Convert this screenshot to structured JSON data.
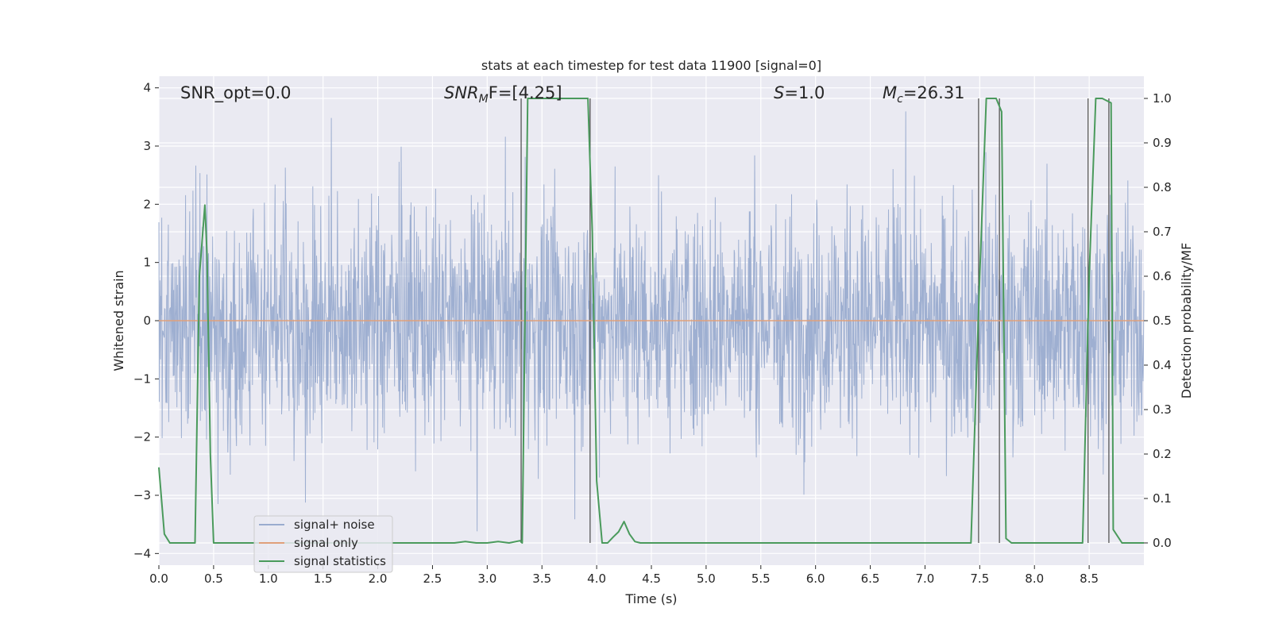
{
  "chart_data": {
    "type": "line",
    "title": "stats at each timestep for test data 11900 [signal=0]",
    "xlabel": "Time (s)",
    "ylabel": "Whitened strain",
    "y2label": "Detection probability/MF",
    "xlim": [
      0.0,
      9.0
    ],
    "ylim": [
      -4.2,
      4.2
    ],
    "y2lim": [
      -0.05,
      1.05
    ],
    "xticks": [
      0.0,
      0.5,
      1.0,
      1.5,
      2.0,
      2.5,
      3.0,
      3.5,
      4.0,
      4.5,
      5.0,
      5.5,
      6.0,
      6.5,
      7.0,
      7.5,
      8.0,
      8.5
    ],
    "xtick_labels": [
      "0.0",
      "0.5",
      "1.0",
      "1.5",
      "2.0",
      "2.5",
      "3.0",
      "3.5",
      "4.0",
      "4.5",
      "5.0",
      "5.5",
      "6.0",
      "6.5",
      "7.0",
      "7.5",
      "8.0",
      "8.5"
    ],
    "yticks": [
      4,
      3,
      2,
      1,
      0,
      -1,
      -2,
      -3,
      -4
    ],
    "ytick_labels": [
      "4",
      "3",
      "2",
      "1",
      "0",
      "−1",
      "−2",
      "−3",
      "−4"
    ],
    "y2ticks": [
      1.0,
      0.9,
      0.8,
      0.7,
      0.6,
      0.5,
      0.4,
      0.3,
      0.2,
      0.1,
      0.0
    ],
    "y2tick_labels": [
      "1.0",
      "0.9",
      "0.8",
      "0.7",
      "0.6",
      "0.5",
      "0.4",
      "0.3",
      "0.2",
      "0.1",
      "0.0"
    ],
    "grid": true,
    "legend_position": "lower-left",
    "annotations": {
      "snr_opt": "SNR_opt=0.0",
      "snr_mf_prefix": "SNR",
      "snr_mf_sub": "M",
      "snr_mf_suffix": "F=[4.25]",
      "s_prefix": "S",
      "s_suffix": "=1.0",
      "mc_prefix": "M",
      "mc_sub": "c",
      "mc_suffix": "=26.31"
    },
    "series": [
      {
        "name": "signal+ noise",
        "color": "#9aaccf",
        "style": "dense noise trace, amplitude mostly within ±2, peaks near ±3.8",
        "amplitude_envelope": [
          -3.8,
          3.8
        ]
      },
      {
        "name": "signal only",
        "color": "#e0a07a",
        "x": [
          0.0,
          9.0
        ],
        "y": [
          0.0,
          0.0
        ]
      },
      {
        "name": "signal statistics",
        "color": "#4a9a5c",
        "axis": "right",
        "x": [
          0.0,
          0.05,
          0.1,
          0.2,
          0.3,
          0.33,
          0.37,
          0.42,
          0.44,
          0.47,
          0.5,
          0.6,
          1.0,
          1.5,
          2.0,
          2.5,
          2.7,
          2.8,
          2.9,
          3.0,
          3.1,
          3.2,
          3.3,
          3.32,
          3.37,
          3.5,
          3.7,
          3.92,
          3.96,
          4.0,
          4.05,
          4.1,
          4.15,
          4.2,
          4.25,
          4.3,
          4.35,
          4.4,
          5.0,
          6.0,
          7.0,
          7.42,
          7.5,
          7.56,
          7.6,
          7.65,
          7.7,
          7.74,
          7.79,
          8.0,
          8.3,
          8.44,
          8.5,
          8.56,
          8.62,
          8.7,
          8.72,
          8.8,
          8.9,
          9.0
        ],
        "y": [
          0.17,
          0.02,
          0.0,
          0.0,
          0.0,
          0.0,
          0.6,
          0.76,
          0.65,
          0.2,
          0.0,
          0.0,
          0.0,
          0.0,
          0.0,
          0.0,
          0.0,
          0.003,
          0.0,
          0.0,
          0.003,
          0.0,
          0.005,
          0.0,
          1.0,
          1.0,
          1.0,
          1.0,
          0.7,
          0.14,
          0.0,
          0.0,
          0.013,
          0.025,
          0.048,
          0.02,
          0.003,
          0.0,
          0.0,
          0.0,
          0.0,
          0.0,
          0.6,
          1.0,
          1.0,
          1.0,
          0.97,
          0.01,
          0.0,
          0.0,
          0.0,
          0.0,
          0.6,
          1.0,
          1.0,
          0.99,
          0.03,
          0.0,
          0.0,
          0.0
        ]
      }
    ],
    "vertical_markers": [
      3.31,
      3.94,
      7.49,
      7.68,
      8.49,
      8.68
    ]
  }
}
